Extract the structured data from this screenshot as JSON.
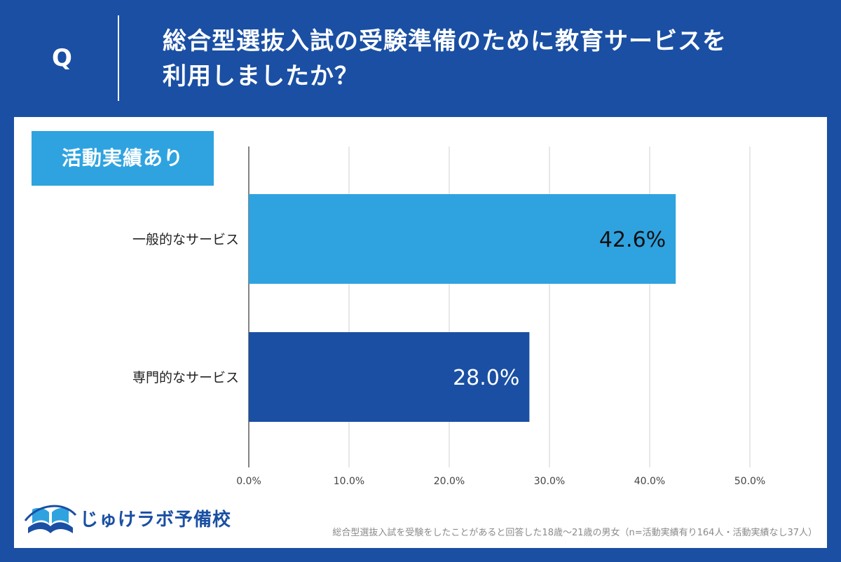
{
  "header": {
    "q_letter": "Q",
    "question_line1": "総合型選抜入試の受験準備のために教育サービスを",
    "question_line2": "利用しましたか？"
  },
  "section_label": "活動実績あり",
  "colors": {
    "header_bg": "#1a4fa3",
    "bar_general": "#2fa3e0",
    "bar_specialized": "#1a4fa3",
    "label_badge": "#2fa3e0"
  },
  "chart_data": {
    "type": "bar",
    "orientation": "horizontal",
    "categories": [
      "一般的なサービス",
      "専門的なサービス"
    ],
    "values": [
      42.6,
      28.0
    ],
    "value_labels": [
      "42.6%",
      "28.0%"
    ],
    "xlim": [
      0,
      50
    ],
    "x_ticks": [
      0,
      10,
      20,
      30,
      40,
      50
    ],
    "x_tick_labels": [
      "0.0%",
      "10.0%",
      "20.0%",
      "30.0%",
      "40.0%",
      "50.0%"
    ],
    "grid": true,
    "title": "",
    "xlabel": "",
    "ylabel": ""
  },
  "brand": {
    "logo_text": "じゅけラボ予備校",
    "logo_icon": "open-book-icon"
  },
  "footnote": "総合型選抜入試を受験をしたことがあると回答した18歳～21歳の男女（n=活動実績有り164人・活動実績なし37人）"
}
